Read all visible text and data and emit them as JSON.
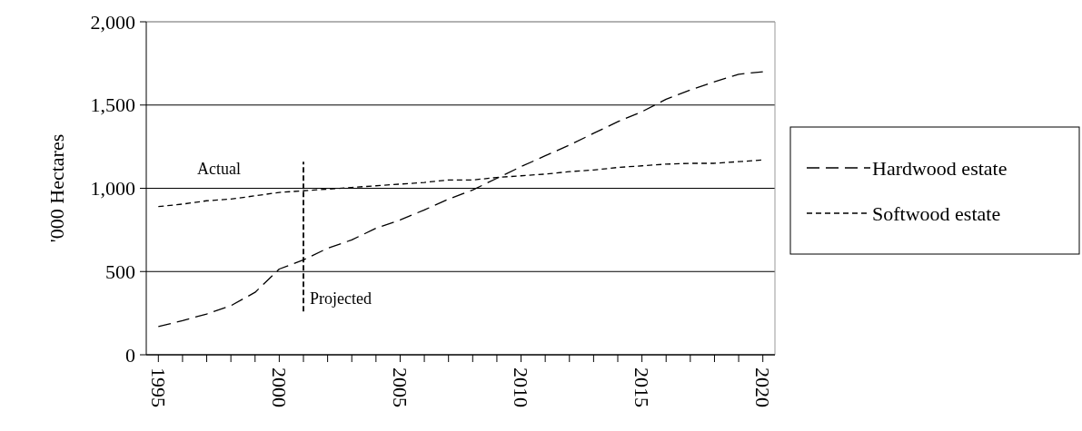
{
  "chart_data": {
    "type": "line",
    "ylabel": "'000 Hectares",
    "x": [
      1995,
      1996,
      1997,
      1998,
      1999,
      2000,
      2001,
      2002,
      2003,
      2004,
      2005,
      2006,
      2007,
      2008,
      2009,
      2010,
      2011,
      2012,
      2013,
      2014,
      2015,
      2016,
      2017,
      2018,
      2019,
      2020
    ],
    "series": [
      {
        "name": "Hardwood estate",
        "color": "#000000",
        "line_style": "dashed",
        "values": [
          170,
          205,
          245,
          295,
          375,
          515,
          570,
          640,
          690,
          760,
          810,
          870,
          935,
          990,
          1060,
          1130,
          1195,
          1260,
          1330,
          1400,
          1460,
          1535,
          1590,
          1640,
          1685,
          1700
        ]
      },
      {
        "name": "Softwood estate",
        "color": "#000000",
        "line_style": "dashed",
        "values": [
          890,
          905,
          925,
          935,
          955,
          975,
          985,
          995,
          1005,
          1015,
          1025,
          1035,
          1050,
          1050,
          1065,
          1075,
          1085,
          1100,
          1110,
          1125,
          1135,
          1145,
          1150,
          1150,
          1160,
          1170
        ]
      }
    ],
    "xlim": [
      1994.5,
      2020.5
    ],
    "xticks": [
      1995,
      2000,
      2005,
      2010,
      2015,
      2020
    ],
    "ylim": [
      0,
      2000
    ],
    "yticks": [
      0,
      {
        "value": 500,
        "label": "500"
      },
      {
        "value": 1000,
        "label": "1,000"
      },
      {
        "value": 1500,
        "label": "1,500"
      },
      {
        "value": 2000,
        "label": "2,000"
      }
    ],
    "grid": "y",
    "legend": "right",
    "marker": "none",
    "ref_lines": [
      {
        "axis": "x",
        "value": 2001,
        "color": "#000000",
        "line_style": "dashed"
      }
    ],
    "annotations": [
      "Actual",
      "Projected"
    ]
  }
}
